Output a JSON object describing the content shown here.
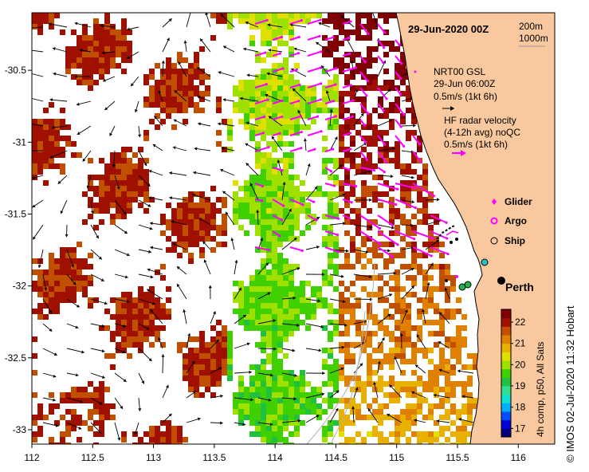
{
  "map": {
    "title": "29-Jun-2020 00Z",
    "depth_contours": [
      "200m",
      "1000m"
    ],
    "x_axis": {
      "ticks": [
        "112",
        "112.5",
        "113",
        "113.5",
        "114",
        "114.5",
        "115",
        "115.5",
        "116"
      ],
      "range": [
        112,
        116.3
      ]
    },
    "y_axis": {
      "ticks": [
        "-30.5",
        "-31",
        "-31.5",
        "-32",
        "-32.5",
        "-33"
      ],
      "range": [
        -33.1,
        -30.1
      ]
    },
    "vector_legend": {
      "gsl_title": "NRT00 GSL",
      "gsl_time": "29-Jun 06:00Z",
      "gsl_scale": "0.5m/s (1kt 6h)",
      "hf_title": "HF radar velocity",
      "hf_sub": "(4-12h avg) noQC",
      "hf_scale": "0.5m/s (1kt 6h)"
    },
    "markers": [
      {
        "label": "Glider",
        "color": "#ff00ff",
        "icon": "diamond-icon"
      },
      {
        "label": "Argo",
        "color": "#ff00ff",
        "icon": "circle-ring-icon"
      },
      {
        "label": "Ship",
        "color": "#000000",
        "icon": "open-circle-icon"
      }
    ],
    "city": "Perth",
    "colorbar": {
      "ticks": [
        "17",
        "18",
        "19",
        "20",
        "21",
        "22"
      ],
      "range": [
        16.6,
        22.6
      ],
      "label": "4h comp, p50, All Sats",
      "colors": [
        "#00007f",
        "#0000d8",
        "#0050ff",
        "#00b0ff",
        "#10e0d0",
        "#30e090",
        "#20c040",
        "#40d000",
        "#a0e000",
        "#e0e000",
        "#e8b000",
        "#e08000",
        "#c05000",
        "#a01000",
        "#7f0000"
      ]
    },
    "credit": "© IMOS 02-Jul-2020 11:32 Hobart",
    "colors": {
      "land": "#f9c89e",
      "glider": "#ff00ff",
      "ship_fill": "#22c3c8"
    }
  }
}
